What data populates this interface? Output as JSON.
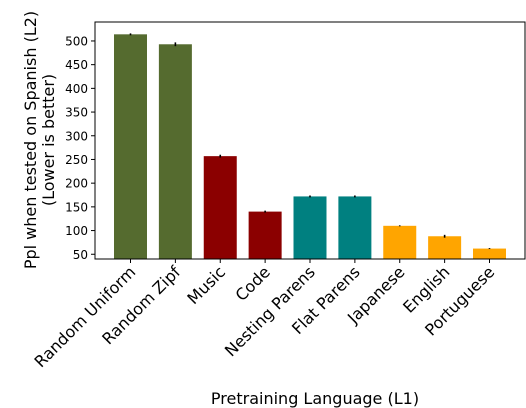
{
  "chart_data": {
    "type": "bar",
    "categories": [
      "Random Uniform",
      "Random Zipf",
      "Music",
      "Code",
      "Nesting Parens",
      "Flat Parens",
      "Japanese",
      "English",
      "Portuguese"
    ],
    "values": [
      514,
      493,
      257,
      140,
      172,
      172,
      110,
      88,
      62
    ],
    "errors": [
      2,
      4,
      3,
      2,
      2,
      2,
      1,
      3,
      1
    ],
    "colors": [
      "#556B2F",
      "#556B2F",
      "#8B0000",
      "#8B0000",
      "#008080",
      "#008080",
      "#FFA500",
      "#FFA500",
      "#FFA500"
    ],
    "xlabel": "Pretraining Language (L1)",
    "ylabel_line1": "Ppl when tested on Spanish (L2)",
    "ylabel_line2": "(Lower is better)",
    "ylim": [
      40,
      540
    ],
    "yticks": [
      50,
      100,
      150,
      200,
      250,
      300,
      350,
      400,
      450,
      500
    ],
    "grid": false,
    "legend": "none"
  }
}
